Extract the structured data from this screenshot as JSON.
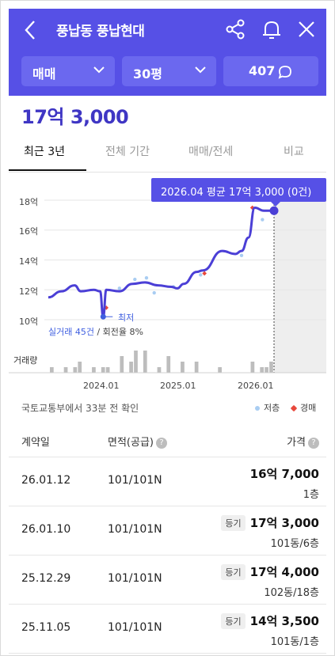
{
  "header": {
    "title": "풍납동 풍납현대",
    "filters": {
      "type": "매매",
      "size": "30평",
      "count": "407"
    }
  },
  "price": "17억 3,000",
  "tabs": [
    "최근 3년",
    "전체 기간",
    "매매/전세",
    "비교"
  ],
  "chart": {
    "tooltip": "2026.04 평균 17억 3,000 (0건)",
    "lowest_label": "최저",
    "deals_count": "실거래 45건",
    "deals_rate": " / 회전율 8%",
    "volume_label": "거래량",
    "source_note": "국토교통부에서 33분 전 확인",
    "legend": [
      {
        "label": "저층",
        "color": "#a9cdf2"
      },
      {
        "label": "경매",
        "color": "#e8483c"
      }
    ]
  },
  "chart_data": {
    "type": "line",
    "yticks": [
      "18억",
      "16억",
      "14억",
      "12억",
      "10억"
    ],
    "ylim": [
      10,
      18
    ],
    "xticks": [
      "2024.01",
      "2025.01",
      "2026.01"
    ],
    "series": [
      {
        "x": [
          2023.33,
          2023.5,
          2023.67,
          2023.75,
          2023.92,
          2024.0,
          2024.04,
          2024.08,
          2024.25,
          2024.42,
          2024.58,
          2024.75,
          2024.92,
          2025.0,
          2025.08,
          2025.25,
          2025.33,
          2025.58,
          2025.75,
          2025.83,
          2025.92,
          2026.0,
          2026.12,
          2026.25
        ],
        "values": [
          11.5,
          11.9,
          12.3,
          11.9,
          12.0,
          11.9,
          10.2,
          12.0,
          11.9,
          12.4,
          12.5,
          12.3,
          12.2,
          12.1,
          12.4,
          13.2,
          13.3,
          14.6,
          14.4,
          14.6,
          15.5,
          17.5,
          17.3,
          17.3
        ]
      }
    ],
    "low_floor_points": [
      [
        2024.25,
        12.1
      ],
      [
        2024.45,
        12.7
      ],
      [
        2024.6,
        12.8
      ],
      [
        2024.7,
        11.8
      ],
      [
        2024.95,
        12.2
      ],
      [
        2025.3,
        13.0
      ],
      [
        2025.83,
        14.3
      ],
      [
        2026.1,
        16.7
      ]
    ],
    "auction_points": [
      [
        2024.08,
        10.8
      ],
      [
        2025.35,
        13.1
      ],
      [
        2025.97,
        17.5
      ]
    ],
    "volume": [
      1,
      0,
      0,
      1,
      0,
      1,
      2,
      0,
      0,
      1,
      0,
      1,
      1,
      0,
      0,
      3,
      0,
      2,
      4,
      0,
      4,
      0,
      0,
      1,
      0,
      3,
      0,
      0,
      2,
      0,
      0,
      2,
      0,
      0,
      0,
      0,
      1,
      0,
      0,
      0,
      0,
      0,
      0,
      2,
      0,
      1,
      1,
      2
    ]
  },
  "table": {
    "headers": {
      "date": "계약일",
      "area": "면적(공급)",
      "price": "가격"
    },
    "rows": [
      {
        "date": "26.01.12",
        "area": "101/101N",
        "badge": "",
        "price": "16억 7,000",
        "floor": "1층"
      },
      {
        "date": "26.01.10",
        "area": "101/101N",
        "badge": "등기",
        "price": "17억 3,000",
        "floor": "101동/6층"
      },
      {
        "date": "25.12.29",
        "area": "101/101N",
        "badge": "등기",
        "price": "17억 4,000",
        "floor": "102동/18층"
      },
      {
        "date": "25.11.05",
        "area": "101/101N",
        "badge": "등기",
        "price": "14억 3,500",
        "floor": "101동/1층"
      }
    ]
  }
}
